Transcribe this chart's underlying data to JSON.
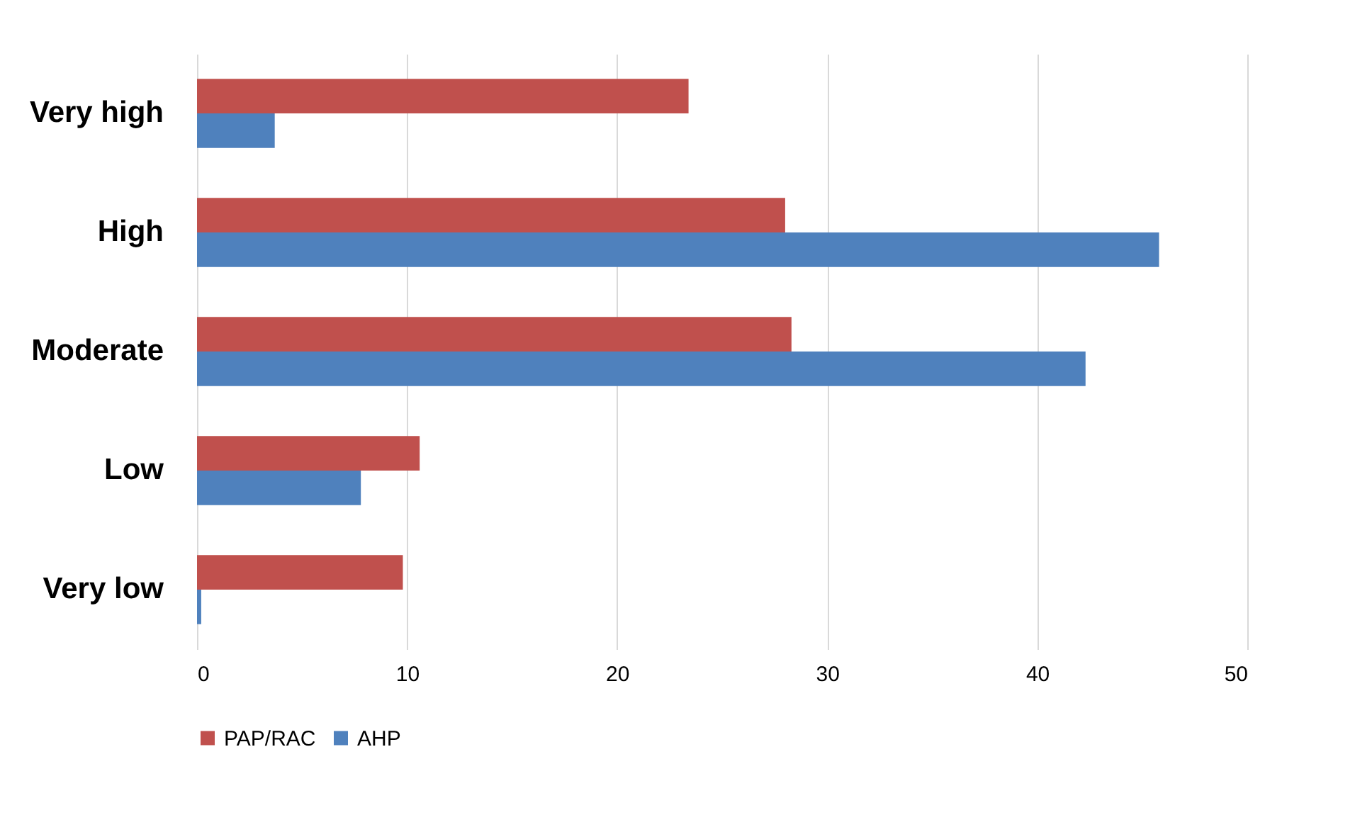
{
  "chart_data": {
    "type": "bar",
    "orientation": "horizontal",
    "categories": [
      "Very high",
      "High",
      "Moderate",
      "Low",
      "Very low"
    ],
    "series": [
      {
        "name": "PAP/RAC",
        "color": "#c0504d",
        "values": [
          23.4,
          28.0,
          28.3,
          10.6,
          9.8
        ]
      },
      {
        "name": "AHP",
        "color": "#4f81bd",
        "values": [
          3.7,
          45.8,
          42.3,
          7.8,
          0.2
        ]
      }
    ],
    "xlim": [
      0,
      50
    ],
    "xticks": [
      0,
      10,
      20,
      30,
      40,
      50
    ],
    "grid": "x",
    "legend": "bottom"
  }
}
